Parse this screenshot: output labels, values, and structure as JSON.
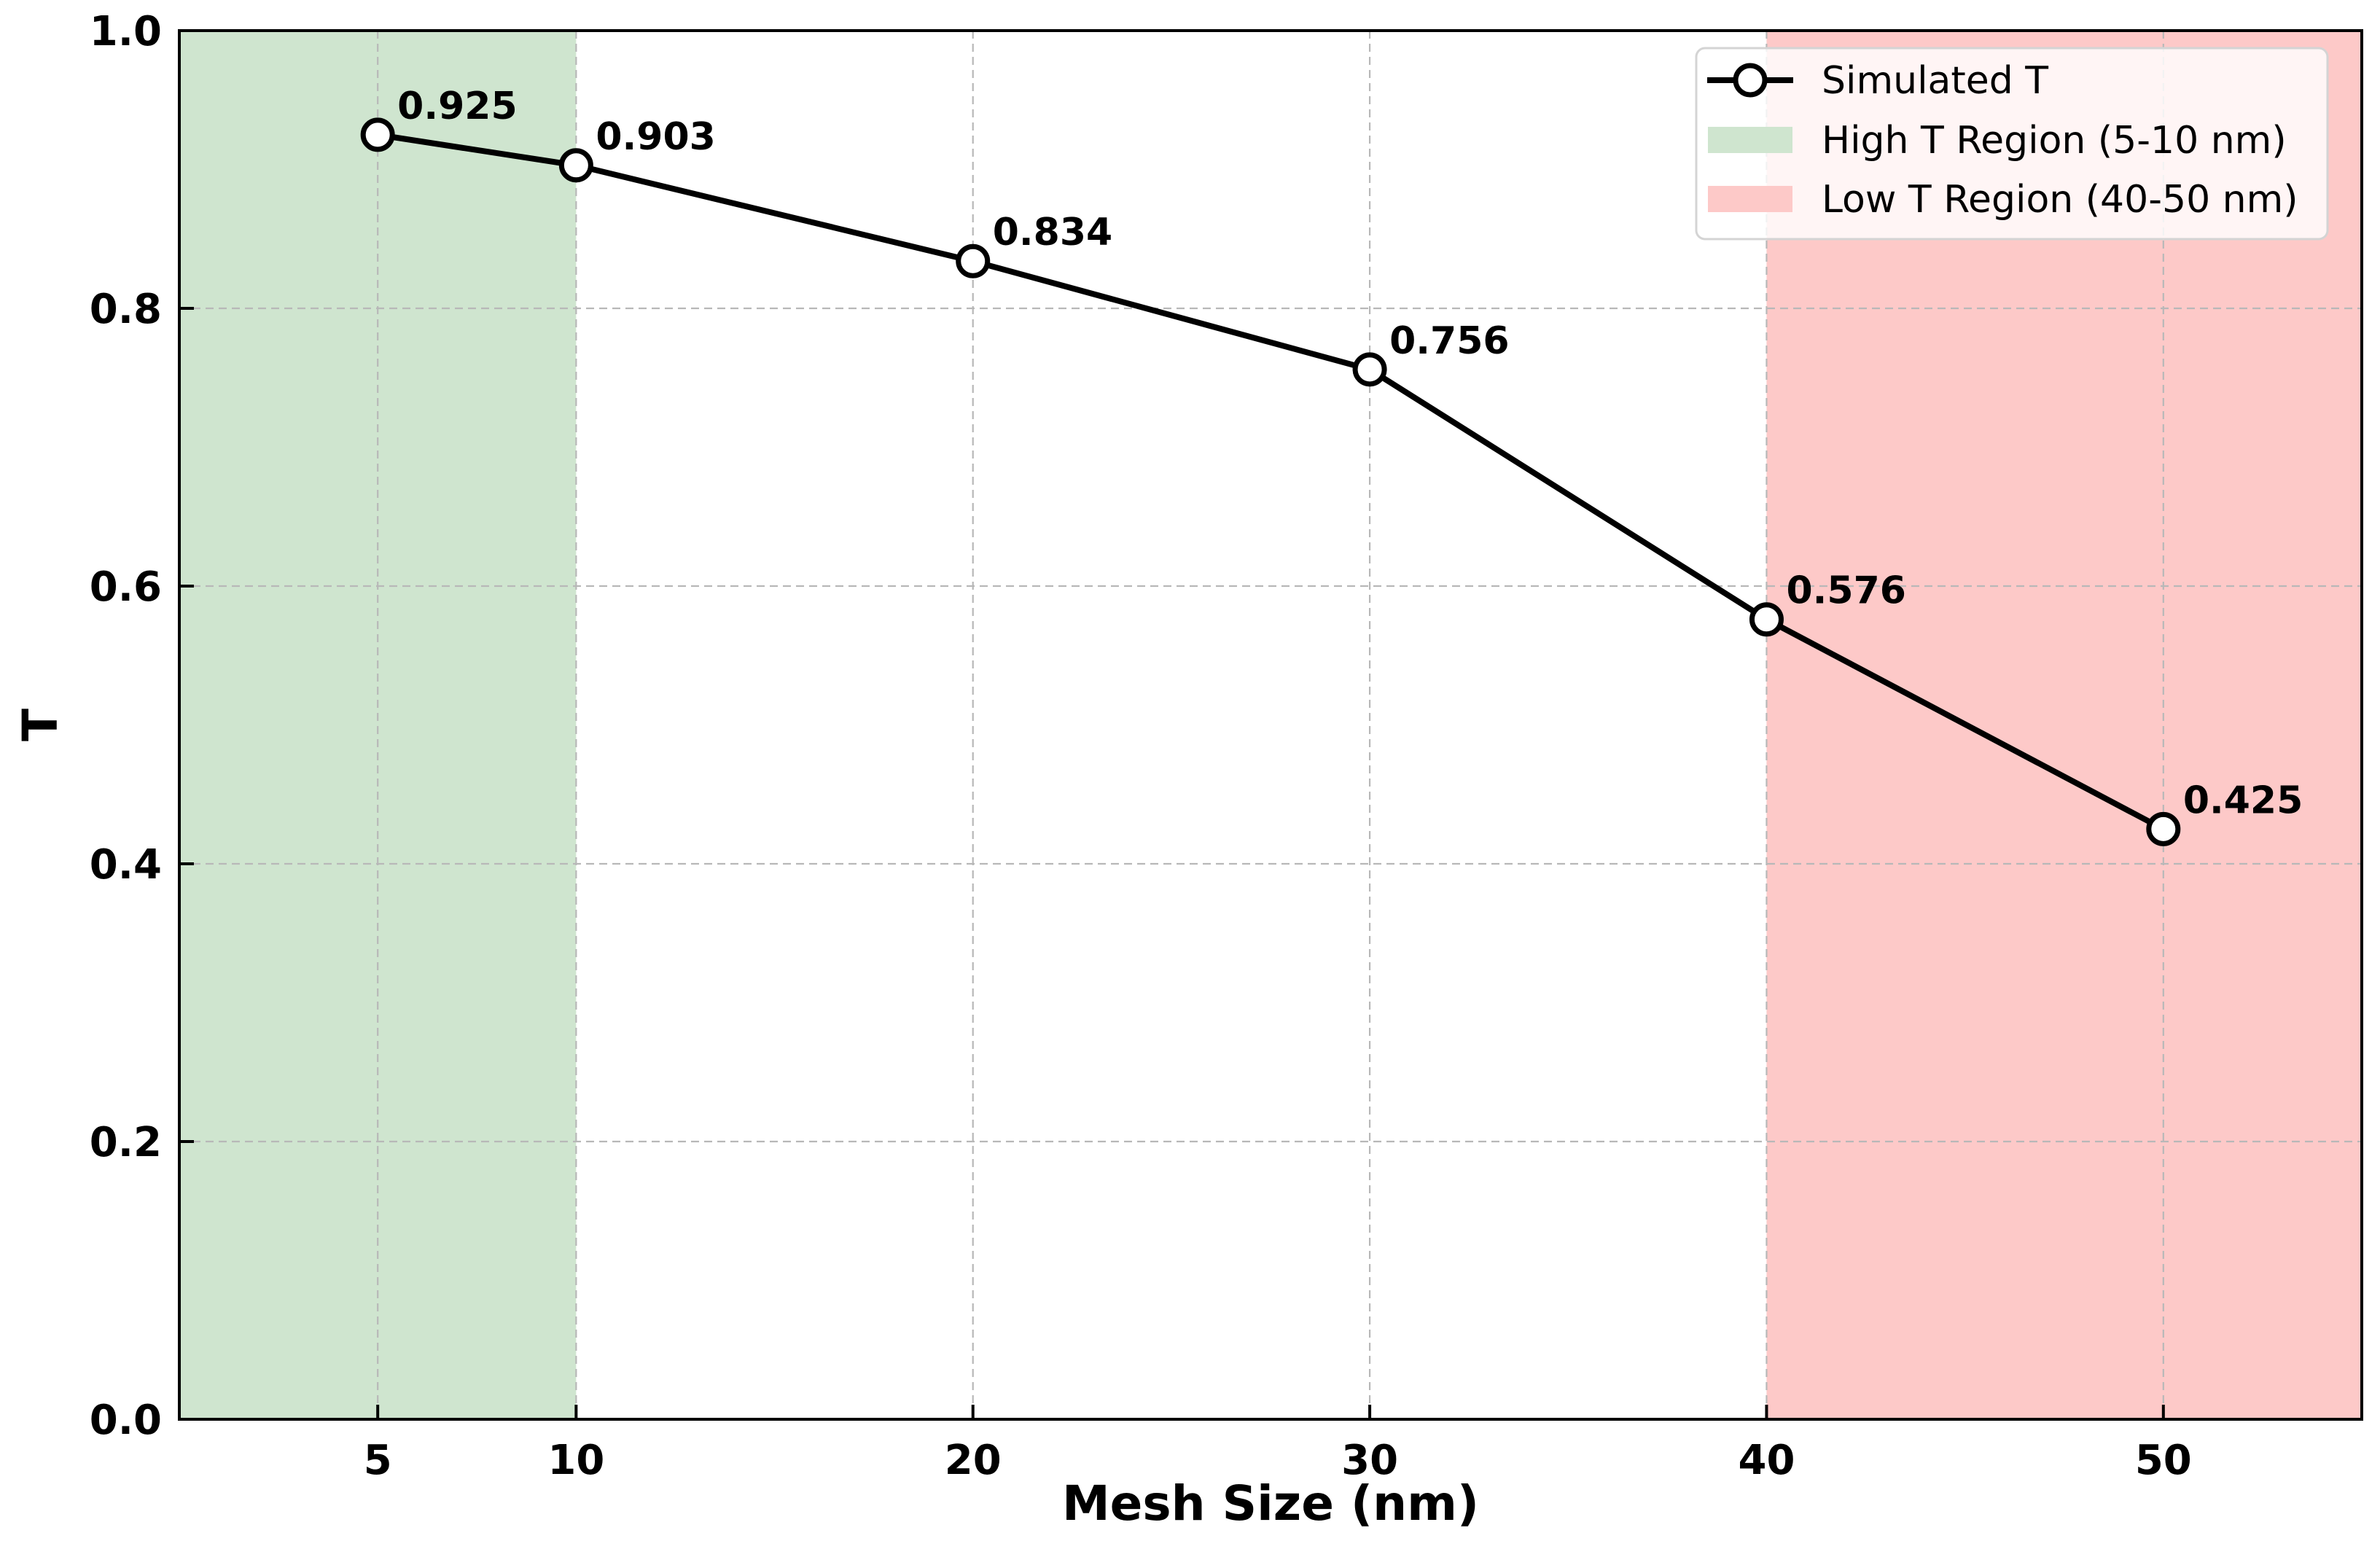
{
  "chart_data": {
    "type": "line",
    "title": "",
    "xlabel": "Mesh Size (nm)",
    "ylabel": "T",
    "xlim": [
      0,
      55
    ],
    "ylim": [
      0.0,
      1.0
    ],
    "xticks": [
      5,
      10,
      20,
      30,
      40,
      50
    ],
    "yticks": [
      0.0,
      0.2,
      0.4,
      0.6,
      0.8,
      1.0
    ],
    "xtick_labels": [
      "5",
      "10",
      "20",
      "30",
      "40",
      "50"
    ],
    "ytick_labels": [
      "0.0",
      "0.2",
      "0.4",
      "0.6",
      "0.8",
      "1.0"
    ],
    "grid": true,
    "legend_position": "top-right",
    "series": [
      {
        "name": "Simulated T",
        "x": [
          5,
          10,
          20,
          30,
          40,
          50
        ],
        "values": [
          0.925,
          0.903,
          0.834,
          0.756,
          0.576,
          0.425
        ],
        "data_labels": [
          "0.925",
          "0.903",
          "0.834",
          "0.756",
          "0.576",
          "0.425"
        ],
        "color": "#000000",
        "marker": "open-circle"
      }
    ],
    "regions": [
      {
        "name": "High T Region (5-10 nm)",
        "x_start": 0,
        "x_end": 10,
        "color": "#cfe5cf"
      },
      {
        "name": "Low T Region (40-50 nm)",
        "x_start": 40,
        "x_end": 55,
        "color": "#fdc9c8"
      }
    ]
  }
}
